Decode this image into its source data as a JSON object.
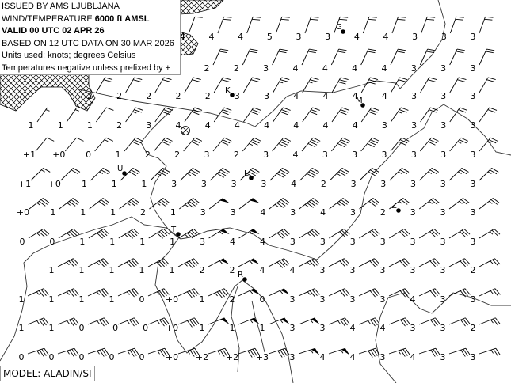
{
  "header": {
    "issued_by": "ISSUED BY AMS LJUBLJANA",
    "wind_temp_prefix": "WIND/TEMPERATURE",
    "level": "6000 ft AMSL",
    "valid": "VALID 00 UTC 02 APR 26",
    "based_on": "BASED ON 12 UTC DATA ON 30 MAR 2026",
    "units": "Units used: knots; degrees Celsius",
    "temp_note": "Temperatures negative unless prefixed by +"
  },
  "model_label": "MODEL: ALADIN/SI",
  "colors": {
    "line": "#000000",
    "coast": "#333333",
    "background": "#ffffff"
  },
  "stations": [
    {
      "label": "G"
    },
    {
      "label": "K"
    },
    {
      "label": "M"
    },
    {
      "label": "U"
    },
    {
      "label": "L"
    },
    {
      "label": "Z"
    },
    {
      "label": "T"
    },
    {
      "label": "R"
    }
  ],
  "grid": [
    {
      "dir": 20,
      "temps": [
        null,
        null,
        null,
        null,
        null,
        "4",
        "4",
        "4",
        "5",
        "3",
        "3",
        "4",
        "4",
        "3",
        "3",
        "3"
      ],
      "speeds": [
        null,
        null,
        null,
        null,
        null,
        10,
        20,
        20,
        20,
        20,
        20,
        20,
        20,
        20,
        20,
        20
      ]
    },
    {
      "dir": 25,
      "temps": [
        null,
        null,
        null,
        null,
        null,
        null,
        "2",
        "2",
        "3",
        "4",
        "4",
        "4",
        "4",
        "3",
        "3",
        "3"
      ],
      "speeds": [
        null,
        null,
        null,
        null,
        null,
        null,
        20,
        20,
        20,
        20,
        20,
        20,
        20,
        20,
        20,
        20
      ]
    },
    {
      "dir": 30,
      "temps": [
        null,
        null,
        "2",
        "2",
        "2",
        "2",
        "2",
        "3",
        "3",
        "4",
        "4",
        "4",
        "4",
        "3",
        "3",
        "3"
      ],
      "speeds": [
        null,
        null,
        20,
        20,
        20,
        20,
        20,
        20,
        25,
        25,
        30,
        30,
        20,
        20,
        20,
        20
      ]
    },
    {
      "dir": 35,
      "temps": [
        "1",
        "1",
        "1",
        "2",
        "3",
        "4",
        "4",
        "4",
        "4",
        "4",
        "4",
        "4",
        "3",
        "3",
        "3",
        "3"
      ],
      "speeds": [
        5,
        5,
        10,
        25,
        30,
        30,
        30,
        30,
        30,
        30,
        30,
        30,
        25,
        20,
        20,
        20
      ]
    },
    {
      "dir": 40,
      "temps": [
        "+1",
        "+0",
        "0",
        "1",
        "2",
        "2",
        "3",
        "2",
        "3",
        "4",
        "3",
        "3",
        "3",
        "3",
        "3",
        "3"
      ],
      "speeds": [
        10,
        10,
        15,
        30,
        30,
        30,
        30,
        35,
        40,
        40,
        40,
        40,
        30,
        30,
        25,
        25
      ]
    },
    {
      "dir": 45,
      "temps": [
        "+1",
        "+0",
        "1",
        "1",
        "1",
        "3",
        "3",
        "3",
        "3",
        "4",
        "2",
        "3",
        "3",
        "3",
        "3",
        "3"
      ],
      "speeds": [
        15,
        20,
        25,
        30,
        35,
        35,
        40,
        40,
        40,
        40,
        35,
        30,
        25,
        25,
        25,
        25
      ]
    },
    {
      "dir": 52,
      "temps": [
        "+0",
        "1",
        "1",
        "1",
        "2",
        "1",
        "3",
        "3",
        "4",
        "3",
        "4",
        "3",
        "2",
        "3",
        "3",
        "3"
      ],
      "speeds": [
        35,
        35,
        30,
        35,
        35,
        45,
        50,
        50,
        45,
        45,
        35,
        30,
        25,
        25,
        25,
        25
      ]
    },
    {
      "dir": 58,
      "temps": [
        "0",
        "0",
        "1",
        "1",
        "1",
        "1",
        "3",
        "4",
        "4",
        "3",
        "3",
        "3",
        "3",
        "3",
        "3",
        "3"
      ],
      "speeds": [
        35,
        35,
        40,
        45,
        40,
        45,
        55,
        55,
        40,
        35,
        30,
        30,
        30,
        30,
        30,
        25
      ]
    },
    {
      "dir": 62,
      "temps": [
        null,
        "1",
        "1",
        "1",
        "1",
        "1",
        "2",
        "2",
        "4",
        "4",
        "3",
        "3",
        "3",
        "3",
        "3",
        "2"
      ],
      "speeds": [
        null,
        35,
        35,
        40,
        40,
        45,
        55,
        55,
        40,
        35,
        30,
        30,
        30,
        30,
        30,
        25
      ]
    },
    {
      "dir": 65,
      "temps": [
        "1",
        "1",
        "1",
        "1",
        "0",
        "+0",
        "1",
        "2",
        "0",
        "3",
        "3",
        "3",
        "3",
        "4",
        "3",
        "3"
      ],
      "speeds": [
        35,
        35,
        35,
        35,
        35,
        40,
        45,
        55,
        55,
        35,
        30,
        30,
        30,
        30,
        30,
        25
      ]
    },
    {
      "dir": 68,
      "temps": [
        "1",
        "1",
        "0",
        "+0",
        "+0",
        "+0",
        "1",
        "1",
        "1",
        "3",
        "3",
        "4",
        "4",
        "3",
        "3",
        "2"
      ],
      "speeds": [
        35,
        35,
        35,
        35,
        35,
        40,
        50,
        55,
        55,
        55,
        35,
        35,
        30,
        30,
        30,
        25
      ]
    },
    {
      "dir": 72,
      "temps": [
        "0",
        "0",
        "0",
        "0",
        "0",
        "+0",
        "+2",
        "+2",
        "+3",
        "3",
        "4",
        "4",
        "3",
        "4",
        "3",
        "3"
      ],
      "speeds": [
        35,
        35,
        35,
        35,
        35,
        35,
        35,
        40,
        40,
        55,
        55,
        40,
        35,
        30,
        30,
        25
      ]
    }
  ]
}
